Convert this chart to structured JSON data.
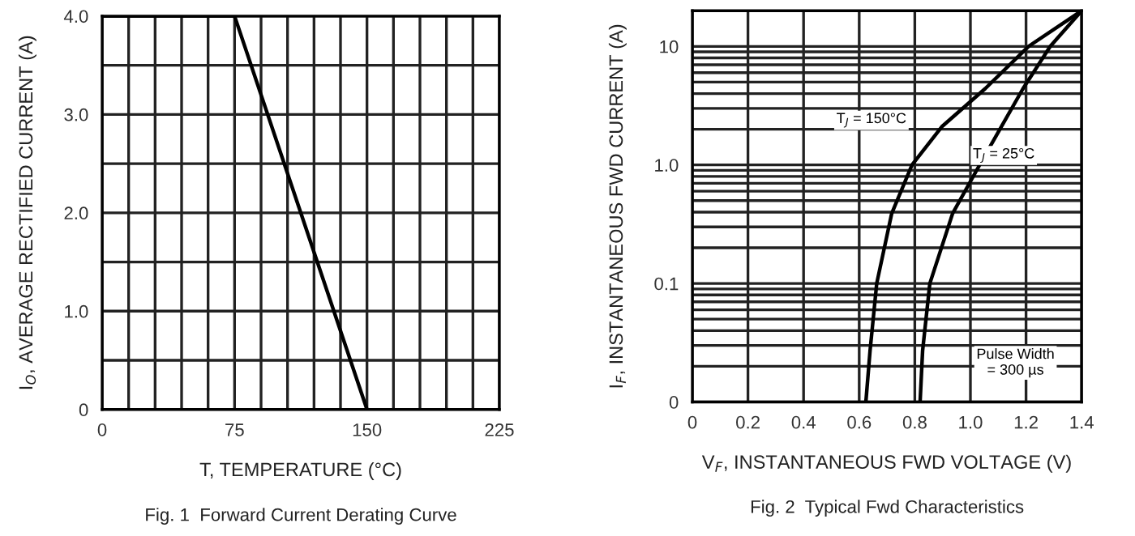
{
  "chart_data": [
    {
      "type": "line",
      "title": "Fig. 1  Forward Current Derating Curve",
      "xlabel": "T, TEMPERATURE (°C)",
      "ylabel": "I$_{O}$, AVERAGE RECTIFIED CURRENT (A)",
      "x": [
        0,
        75,
        150
      ],
      "series": [
        {
          "color": "#000000",
          "values": [
            4.0,
            4.0,
            0
          ]
        }
      ],
      "xlim": [
        0,
        225
      ],
      "ylim": [
        0,
        4.0
      ],
      "xticks": [
        0,
        {
          "value": 15,
          "label": null
        },
        {
          "value": 30,
          "label": null
        },
        {
          "value": 45,
          "label": null
        },
        {
          "value": 60,
          "label": null
        },
        75,
        {
          "value": 90,
          "label": null
        },
        {
          "value": 105,
          "label": null
        },
        {
          "value": 120,
          "label": null
        },
        {
          "value": 135,
          "label": null
        },
        150,
        {
          "value": 165,
          "label": null
        },
        {
          "value": 180,
          "label": null
        },
        {
          "value": 195,
          "label": null
        },
        {
          "value": 210,
          "label": null
        },
        225
      ],
      "yticks": [
        0,
        {
          "value": 0.5,
          "label": null
        },
        {
          "value": 1,
          "label": "1.0"
        },
        {
          "value": 1.5,
          "label": null
        },
        {
          "value": 2,
          "label": "2.0"
        },
        {
          "value": 2.5,
          "label": null
        },
        {
          "value": 3,
          "label": "3.0"
        },
        {
          "value": 3.5,
          "label": null
        },
        {
          "value": 4,
          "label": "4.0"
        }
      ],
      "grid": true,
      "marker": "none",
      "line_style": "solid"
    },
    {
      "type": "line",
      "title": "Fig. 2  Typical Fwd Characteristics",
      "xlabel": "V$_{F}$, INSTANTANEOUS FWD VOLTAGE (V)",
      "ylabel": "I$_{F}$, INSTANTANEOUS FWD CURRENT (A)",
      "series": [
        {
          "color": "#000000",
          "x": [
            0.624,
            0.639,
            0.663,
            0.717,
            0.79,
            0.897,
            1.053,
            1.209,
            1.4
          ],
          "values": [
            0.01,
            0.027,
            0.1,
            0.39,
            1.0,
            2.1,
            4.4,
            10,
            20
          ]
        },
        {
          "color": "#000000",
          "x": [
            0.819,
            0.828,
            0.854,
            0.936,
            1.033,
            1.111,
            1.189,
            1.287,
            1.4
          ],
          "values": [
            0.01,
            0.027,
            0.1,
            0.39,
            1.0,
            2.1,
            4.4,
            10,
            20
          ]
        }
      ],
      "annotations": [
        "T$_{J}$ = 150°C",
        "T$_{J}$ = 25°C",
        "Pulse Width\n= 300 µs"
      ],
      "log": "y",
      "xlim": [
        0,
        1.4
      ],
      "ylim": [
        0.01,
        20
      ],
      "xticks": [
        0,
        0.2,
        0.4,
        0.6,
        0.8,
        {
          "value": 1,
          "label": "1.0"
        },
        1.2,
        1.4
      ],
      "yticks": [
        {
          "value": 0.01,
          "label": "0"
        },
        {
          "value": 0.02,
          "label": null
        },
        {
          "value": 0.03,
          "label": null
        },
        {
          "value": 0.04,
          "label": null
        },
        {
          "value": 0.05,
          "label": null
        },
        {
          "value": 0.06,
          "label": null
        },
        {
          "value": 0.07,
          "label": null
        },
        {
          "value": 0.08,
          "label": null
        },
        {
          "value": 0.09,
          "label": null
        },
        0.1,
        {
          "value": 0.2,
          "label": null
        },
        {
          "value": 0.3,
          "label": null
        },
        {
          "value": 0.4,
          "label": null
        },
        {
          "value": 0.5,
          "label": null
        },
        {
          "value": 0.6,
          "label": null
        },
        {
          "value": 0.7,
          "label": null
        },
        {
          "value": 0.8,
          "label": null
        },
        {
          "value": 0.9,
          "label": null
        },
        {
          "value": 1,
          "label": "1.0"
        },
        {
          "value": 2,
          "label": null
        },
        {
          "value": 3,
          "label": null
        },
        {
          "value": 4,
          "label": null
        },
        {
          "value": 5,
          "label": null
        },
        {
          "value": 6,
          "label": null
        },
        {
          "value": 7,
          "label": null
        },
        {
          "value": 8,
          "label": null
        },
        {
          "value": 9,
          "label": null
        },
        10
      ],
      "grid": true,
      "marker": "none",
      "line_style": "solid"
    }
  ]
}
